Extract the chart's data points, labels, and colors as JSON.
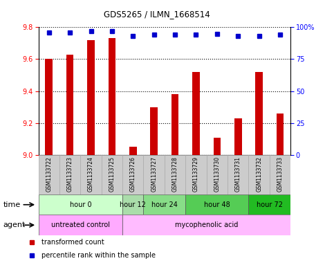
{
  "title": "GDS5265 / ILMN_1668514",
  "samples": [
    "GSM1133722",
    "GSM1133723",
    "GSM1133724",
    "GSM1133725",
    "GSM1133726",
    "GSM1133727",
    "GSM1133728",
    "GSM1133729",
    "GSM1133730",
    "GSM1133731",
    "GSM1133732",
    "GSM1133733"
  ],
  "transformed_count": [
    9.6,
    9.63,
    9.72,
    9.73,
    9.05,
    9.3,
    9.38,
    9.52,
    9.11,
    9.23,
    9.52,
    9.26
  ],
  "percentile_rank": [
    96,
    96,
    97,
    97,
    93,
    94,
    94,
    94,
    95,
    93,
    93,
    94
  ],
  "ylim_left": [
    9.0,
    9.8
  ],
  "ylim_right": [
    0,
    100
  ],
  "yticks_left": [
    9.0,
    9.2,
    9.4,
    9.6,
    9.8
  ],
  "yticks_right": [
    0,
    25,
    50,
    75,
    100
  ],
  "bar_color": "#cc0000",
  "dot_color": "#0000cc",
  "time_groups": [
    {
      "label": "hour 0",
      "indices": [
        0,
        1,
        2,
        3
      ],
      "color": "#ccffcc"
    },
    {
      "label": "hour 12",
      "indices": [
        4
      ],
      "color": "#aaddaa"
    },
    {
      "label": "hour 24",
      "indices": [
        5,
        6
      ],
      "color": "#88dd88"
    },
    {
      "label": "hour 48",
      "indices": [
        7,
        8,
        9
      ],
      "color": "#55cc55"
    },
    {
      "label": "hour 72",
      "indices": [
        10,
        11
      ],
      "color": "#22bb22"
    }
  ],
  "agent_groups": [
    {
      "label": "untreated control",
      "indices": [
        0,
        1,
        2,
        3
      ],
      "color": "#ffaaff"
    },
    {
      "label": "mycophenolic acid",
      "indices": [
        4,
        5,
        6,
        7,
        8,
        9,
        10,
        11
      ],
      "color": "#ffbbff"
    }
  ],
  "legend_bar_label": "transformed count",
  "legend_dot_label": "percentile rank within the sample",
  "sample_box_color": "#cccccc",
  "bar_width": 0.35
}
